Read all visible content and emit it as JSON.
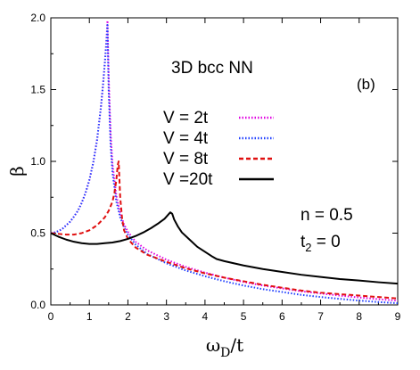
{
  "chart_data": {
    "type": "line",
    "title": "3D bcc  NN",
    "panel_label": "(b)",
    "xlabel": {
      "main": "ω",
      "sub": "D",
      "tail": "/t"
    },
    "ylabel": "β",
    "xlim": [
      0,
      9
    ],
    "ylim": [
      0,
      2.0
    ],
    "x_ticks": [
      "0",
      "1",
      "2",
      "3",
      "4",
      "5",
      "6",
      "7",
      "8",
      "9"
    ],
    "y_ticks": [
      "0.0",
      "0.5",
      "1.0",
      "1.5",
      "2.0"
    ],
    "grid": false,
    "legend_position": "upper-middle",
    "annotations": [
      {
        "id": "n",
        "text": "n = 0.5"
      },
      {
        "id": "t2",
        "main": "t",
        "sub": "2",
        "tail": " = 0"
      }
    ],
    "series": [
      {
        "name": "V = 2t",
        "color": "#e000e0",
        "dash": "dotted",
        "x": [
          0,
          0.1,
          0.2,
          0.3,
          0.4,
          0.5,
          0.6,
          0.7,
          0.8,
          0.9,
          1.0,
          1.1,
          1.2,
          1.3,
          1.35,
          1.4,
          1.42,
          1.44,
          1.46,
          1.47,
          1.5,
          1.55,
          1.6,
          1.7,
          1.8,
          1.9,
          2.0,
          2.2,
          2.5,
          3.0,
          3.5,
          4.0,
          4.5,
          5.0,
          5.5,
          6.0,
          6.5,
          7.0,
          7.5,
          8.0,
          8.5,
          9.0
        ],
        "y": [
          0.5,
          0.505,
          0.515,
          0.53,
          0.555,
          0.58,
          0.615,
          0.655,
          0.71,
          0.78,
          0.87,
          0.99,
          1.15,
          1.38,
          1.52,
          1.68,
          1.76,
          1.84,
          1.93,
          1.98,
          1.6,
          1.2,
          0.98,
          0.76,
          0.64,
          0.56,
          0.51,
          0.44,
          0.38,
          0.315,
          0.265,
          0.225,
          0.19,
          0.16,
          0.135,
          0.115,
          0.095,
          0.08,
          0.065,
          0.052,
          0.04,
          0.03
        ]
      },
      {
        "name": "V = 4t",
        "color": "#2040ff",
        "dash": "dotted",
        "x": [
          0,
          0.1,
          0.2,
          0.3,
          0.4,
          0.5,
          0.6,
          0.7,
          0.8,
          0.9,
          1.0,
          1.1,
          1.2,
          1.3,
          1.35,
          1.4,
          1.42,
          1.44,
          1.46,
          1.47,
          1.5,
          1.55,
          1.6,
          1.7,
          1.8,
          1.9,
          2.0,
          2.2,
          2.5,
          3.0,
          3.5,
          4.0,
          4.5,
          5.0,
          5.5,
          6.0,
          6.5,
          7.0,
          7.5,
          8.0,
          8.5,
          9.0
        ],
        "y": [
          0.5,
          0.505,
          0.515,
          0.53,
          0.555,
          0.58,
          0.615,
          0.655,
          0.71,
          0.78,
          0.87,
          0.99,
          1.15,
          1.38,
          1.52,
          1.68,
          1.75,
          1.82,
          1.9,
          1.95,
          1.5,
          1.12,
          0.92,
          0.72,
          0.61,
          0.54,
          0.49,
          0.42,
          0.355,
          0.29,
          0.24,
          0.2,
          0.165,
          0.135,
          0.11,
          0.09,
          0.07,
          0.055,
          0.042,
          0.03,
          0.02,
          0.012
        ]
      },
      {
        "name": "V = 8t",
        "color": "#e01010",
        "dash": "dashed",
        "x": [
          0,
          0.2,
          0.4,
          0.6,
          0.8,
          1.0,
          1.2,
          1.4,
          1.5,
          1.6,
          1.65,
          1.7,
          1.72,
          1.74,
          1.76,
          1.8,
          1.85,
          1.9,
          2.0,
          2.2,
          2.5,
          3.0,
          3.5,
          4.0,
          4.5,
          5.0,
          5.5,
          6.0,
          6.5,
          7.0,
          7.5,
          8.0,
          8.5,
          9.0
        ],
        "y": [
          0.5,
          0.495,
          0.49,
          0.49,
          0.5,
          0.52,
          0.555,
          0.61,
          0.655,
          0.72,
          0.78,
          0.87,
          0.93,
          0.98,
          1.0,
          0.75,
          0.6,
          0.52,
          0.46,
          0.4,
          0.35,
          0.3,
          0.255,
          0.22,
          0.19,
          0.165,
          0.14,
          0.12,
          0.1,
          0.085,
          0.075,
          0.065,
          0.055,
          0.045
        ]
      },
      {
        "name": "V =20t",
        "color": "#000000",
        "dash": "solid",
        "x": [
          0,
          0.2,
          0.4,
          0.6,
          0.8,
          1.0,
          1.2,
          1.4,
          1.6,
          1.8,
          2.0,
          2.2,
          2.4,
          2.6,
          2.8,
          2.95,
          3.05,
          3.1,
          3.15,
          3.2,
          3.3,
          3.4,
          3.6,
          3.8,
          4.0,
          4.2,
          4.3,
          4.5,
          5.0,
          5.5,
          6.0,
          6.5,
          7.0,
          7.5,
          8.0,
          8.5,
          9.0
        ],
        "y": [
          0.5,
          0.475,
          0.455,
          0.44,
          0.43,
          0.425,
          0.425,
          0.43,
          0.435,
          0.445,
          0.46,
          0.48,
          0.505,
          0.535,
          0.57,
          0.6,
          0.63,
          0.645,
          0.635,
          0.595,
          0.545,
          0.505,
          0.455,
          0.405,
          0.37,
          0.335,
          0.32,
          0.305,
          0.275,
          0.25,
          0.23,
          0.21,
          0.195,
          0.18,
          0.17,
          0.158,
          0.148
        ]
      }
    ]
  }
}
